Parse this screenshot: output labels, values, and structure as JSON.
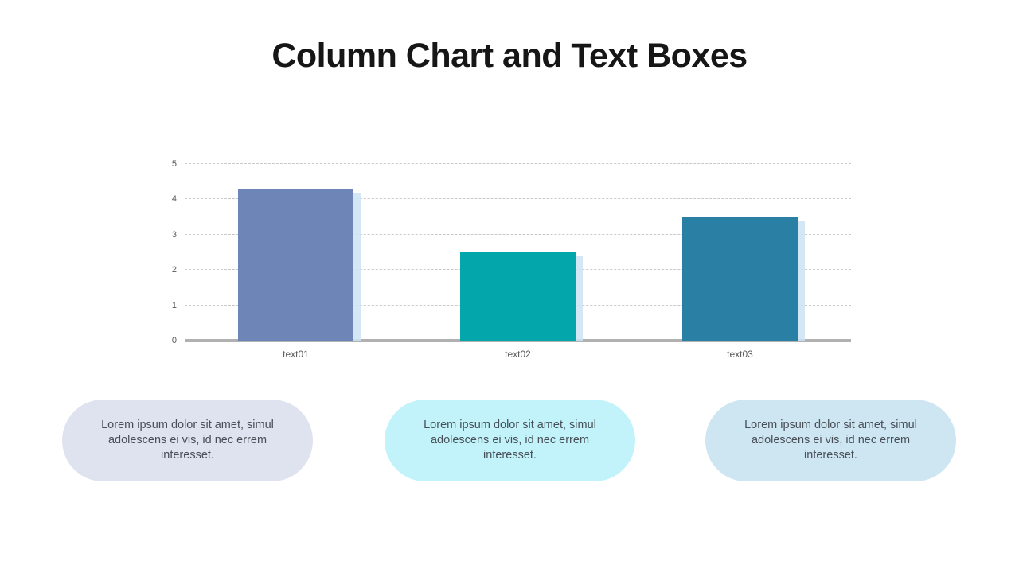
{
  "slide": {
    "title": "Column Chart and Text Boxes"
  },
  "chart_data": {
    "type": "bar",
    "categories": [
      "text01",
      "text02",
      "text03"
    ],
    "values": [
      4.3,
      2.5,
      3.5
    ],
    "bar_colors": [
      "#6e86b7",
      "#03a7ab",
      "#2a80a4"
    ],
    "title": "",
    "xlabel": "",
    "ylabel": "",
    "ylim": [
      0,
      5
    ],
    "yticks": [
      0,
      1,
      2,
      3,
      4,
      5
    ],
    "grid": "horizontal-dashed",
    "legend": "none"
  },
  "text_boxes": [
    {
      "text": "Lorem ipsum dolor sit amet, simul adolescens ei vis, id nec errem interesset.",
      "bg": "#dfe2ef"
    },
    {
      "text": "Lorem ipsum dolor sit amet, simul adolescens ei vis, id nec errem interesset.",
      "bg": "#c2f3fa"
    },
    {
      "text": "Lorem ipsum dolor sit amet, simul adolescens ei vis, id nec errem interesset.",
      "bg": "#cee5f2"
    }
  ],
  "colors": {
    "gridline": "#c9c9c9",
    "axis_line": "#b1b1b1",
    "axis_label": "#595959",
    "bar_side_shadow": "#cde3f2",
    "title_text": "#161616",
    "box_text": "#474f57",
    "background": "#ffffff"
  }
}
